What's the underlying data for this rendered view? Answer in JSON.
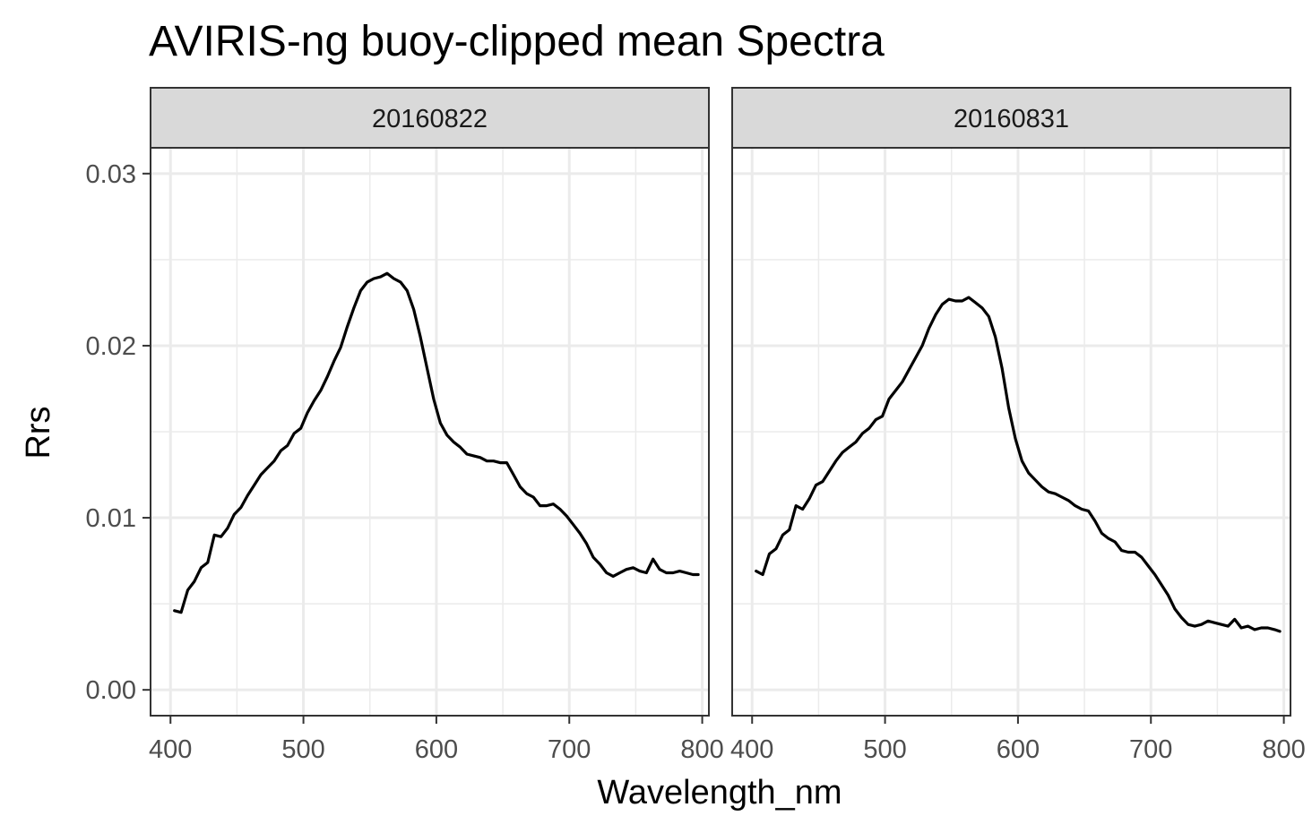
{
  "chart_data": {
    "type": "line",
    "title": "AVIRIS-ng buoy-clipped mean Spectra",
    "xlabel": "Wavelength_nm",
    "ylabel": "Rrs",
    "xlim": [
      385,
      805
    ],
    "ylim": [
      -0.0015,
      0.0315
    ],
    "x_ticks": [
      400,
      500,
      600,
      700,
      800
    ],
    "x_tick_labels": [
      "400",
      "500",
      "600",
      "700",
      "800"
    ],
    "y_ticks": [
      0.0,
      0.01,
      0.02,
      0.03
    ],
    "y_tick_labels": [
      "0.00",
      "0.01",
      "0.02",
      "0.03"
    ],
    "grid": true,
    "legend": "none",
    "colors": {
      "line": "#000000",
      "strip": "#d9d9d9",
      "grid": "#ebebeb",
      "border": "#333333"
    },
    "panels": [
      {
        "strip_label": "20160822",
        "series": [
          {
            "x": [
              403,
              408,
              413,
              418,
              423,
              428,
              433,
              438,
              443,
              448,
              453,
              458,
              463,
              468,
              473,
              478,
              483,
              488,
              493,
              498,
              503,
              508,
              513,
              518,
              523,
              528,
              533,
              538,
              543,
              548,
              553,
              558,
              563,
              568,
              573,
              578,
              583,
              588,
              593,
              598,
              603,
              608,
              613,
              618,
              623,
              628,
              633,
              638,
              643,
              648,
              653,
              658,
              663,
              668,
              673,
              678,
              683,
              688,
              693,
              698,
              703,
              708,
              713,
              718,
              723,
              728,
              733,
              738,
              743,
              748,
              753,
              758,
              763,
              768,
              773,
              778,
              783,
              788,
              793,
              797
            ],
            "y": [
              0.0046,
              0.0045,
              0.0058,
              0.0063,
              0.0071,
              0.0074,
              0.009,
              0.0089,
              0.0094,
              0.0102,
              0.0106,
              0.0113,
              0.0119,
              0.0125,
              0.0129,
              0.0133,
              0.0139,
              0.0142,
              0.0149,
              0.0152,
              0.0161,
              0.0168,
              0.0174,
              0.0182,
              0.0191,
              0.0199,
              0.0211,
              0.0222,
              0.0232,
              0.0237,
              0.0239,
              0.024,
              0.0242,
              0.0239,
              0.0237,
              0.0232,
              0.0221,
              0.0205,
              0.0187,
              0.0169,
              0.0155,
              0.0148,
              0.0144,
              0.0141,
              0.0137,
              0.0136,
              0.0135,
              0.0133,
              0.0133,
              0.0132,
              0.0132,
              0.0125,
              0.0118,
              0.0114,
              0.0112,
              0.0107,
              0.0107,
              0.0108,
              0.0105,
              0.0101,
              0.0096,
              0.0091,
              0.0085,
              0.0077,
              0.0073,
              0.0068,
              0.0066,
              0.0068,
              0.007,
              0.0071,
              0.0069,
              0.0068,
              0.0076,
              0.007,
              0.0068,
              0.0068,
              0.0069,
              0.0068,
              0.0067,
              0.0067
            ]
          }
        ]
      },
      {
        "strip_label": "20160831",
        "series": [
          {
            "x": [
              403,
              408,
              413,
              418,
              423,
              428,
              433,
              438,
              443,
              448,
              453,
              458,
              463,
              468,
              473,
              478,
              483,
              488,
              493,
              498,
              503,
              508,
              513,
              518,
              523,
              528,
              533,
              538,
              543,
              548,
              553,
              558,
              563,
              568,
              573,
              578,
              583,
              588,
              593,
              598,
              603,
              608,
              613,
              618,
              623,
              628,
              633,
              638,
              643,
              648,
              653,
              658,
              663,
              668,
              673,
              678,
              683,
              688,
              693,
              698,
              703,
              708,
              713,
              718,
              723,
              728,
              733,
              738,
              743,
              748,
              753,
              758,
              763,
              768,
              773,
              778,
              783,
              788,
              793,
              797
            ],
            "y": [
              0.0069,
              0.0067,
              0.0079,
              0.0082,
              0.009,
              0.0093,
              0.0107,
              0.0105,
              0.0111,
              0.0119,
              0.0121,
              0.0127,
              0.0133,
              0.0138,
              0.0141,
              0.0144,
              0.0149,
              0.0152,
              0.0157,
              0.0159,
              0.0169,
              0.0174,
              0.0179,
              0.0186,
              0.0193,
              0.02,
              0.021,
              0.0218,
              0.0224,
              0.0227,
              0.0226,
              0.0226,
              0.0228,
              0.0225,
              0.0222,
              0.0217,
              0.0205,
              0.0187,
              0.0164,
              0.0146,
              0.0133,
              0.0126,
              0.0122,
              0.0118,
              0.0115,
              0.0114,
              0.0112,
              0.011,
              0.0107,
              0.0105,
              0.0104,
              0.0098,
              0.0091,
              0.0088,
              0.0086,
              0.0081,
              0.008,
              0.008,
              0.0077,
              0.0072,
              0.0067,
              0.0061,
              0.0055,
              0.0047,
              0.0042,
              0.0038,
              0.0037,
              0.0038,
              0.004,
              0.0039,
              0.0038,
              0.0037,
              0.0041,
              0.0036,
              0.0037,
              0.0035,
              0.0036,
              0.0036,
              0.0035,
              0.0034
            ]
          }
        ]
      }
    ]
  }
}
